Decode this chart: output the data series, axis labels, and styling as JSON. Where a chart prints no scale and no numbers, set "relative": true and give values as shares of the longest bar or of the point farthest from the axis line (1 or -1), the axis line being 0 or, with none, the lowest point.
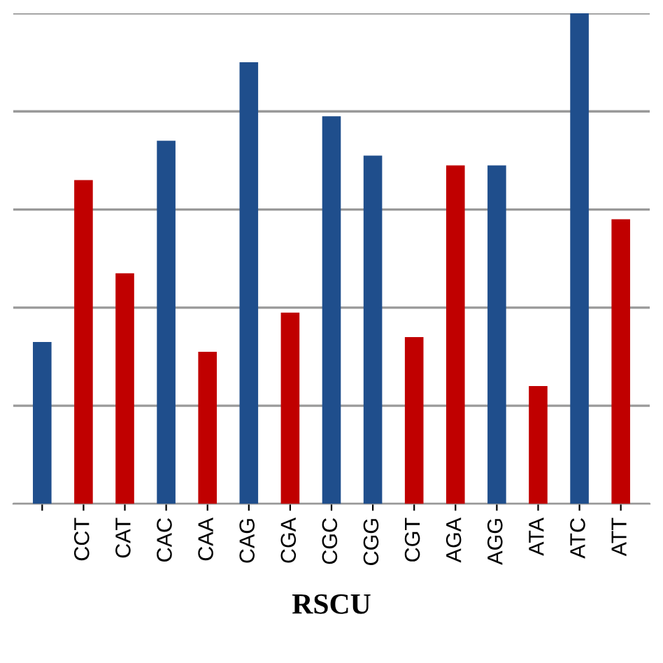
{
  "chart_data": {
    "type": "bar",
    "relative": true,
    "xlabel": "RSCU",
    "grid": "y",
    "tick_labels": "x",
    "categories": [
      null,
      "CCT",
      "CAT",
      "CAC",
      "CAA",
      "CAG",
      "CGA",
      "CGC",
      "CGG",
      "CGT",
      "AGA",
      "AGG",
      "ATA",
      "ATC",
      "ATT"
    ],
    "values": [
      0.33,
      0.66,
      0.47,
      0.74,
      0.31,
      0.9,
      0.39,
      0.79,
      0.71,
      0.34,
      0.69,
      0.69,
      0.24,
      1,
      0.58
    ],
    "colors": [
      "#1f4e8c",
      "#c00000",
      "#c00000",
      "#1f4e8c",
      "#c00000",
      "#1f4e8c",
      "#c00000",
      "#1f4e8c",
      "#1f4e8c",
      "#c00000",
      "#c00000",
      "#1f4e8c",
      "#c00000",
      "#1f4e8c",
      "#c00000"
    ]
  }
}
